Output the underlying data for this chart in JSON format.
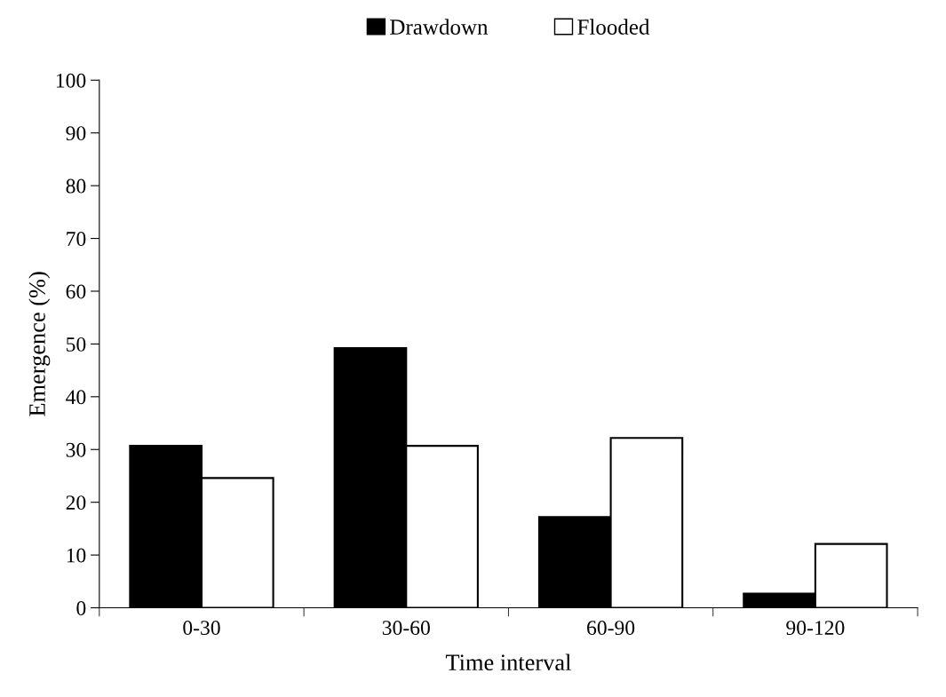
{
  "chart_data": {
    "type": "bar",
    "xlabel": "Time interval",
    "ylabel": "Emergence (%)",
    "categories": [
      "0-30",
      "30-60",
      "60-90",
      "90-120"
    ],
    "series": [
      {
        "name": "Drawdown",
        "color": "#000000",
        "values": [
          30.7,
          49.2,
          17.2,
          2.7
        ]
      },
      {
        "name": "Flooded",
        "color": "#ffffff",
        "values": [
          24.6,
          30.7,
          32.2,
          12.1
        ]
      }
    ],
    "ylim": [
      0,
      100
    ],
    "yticks": [
      0,
      10,
      20,
      30,
      40,
      50,
      60,
      70,
      80,
      90,
      100
    ],
    "grid": false,
    "legend": "top"
  }
}
